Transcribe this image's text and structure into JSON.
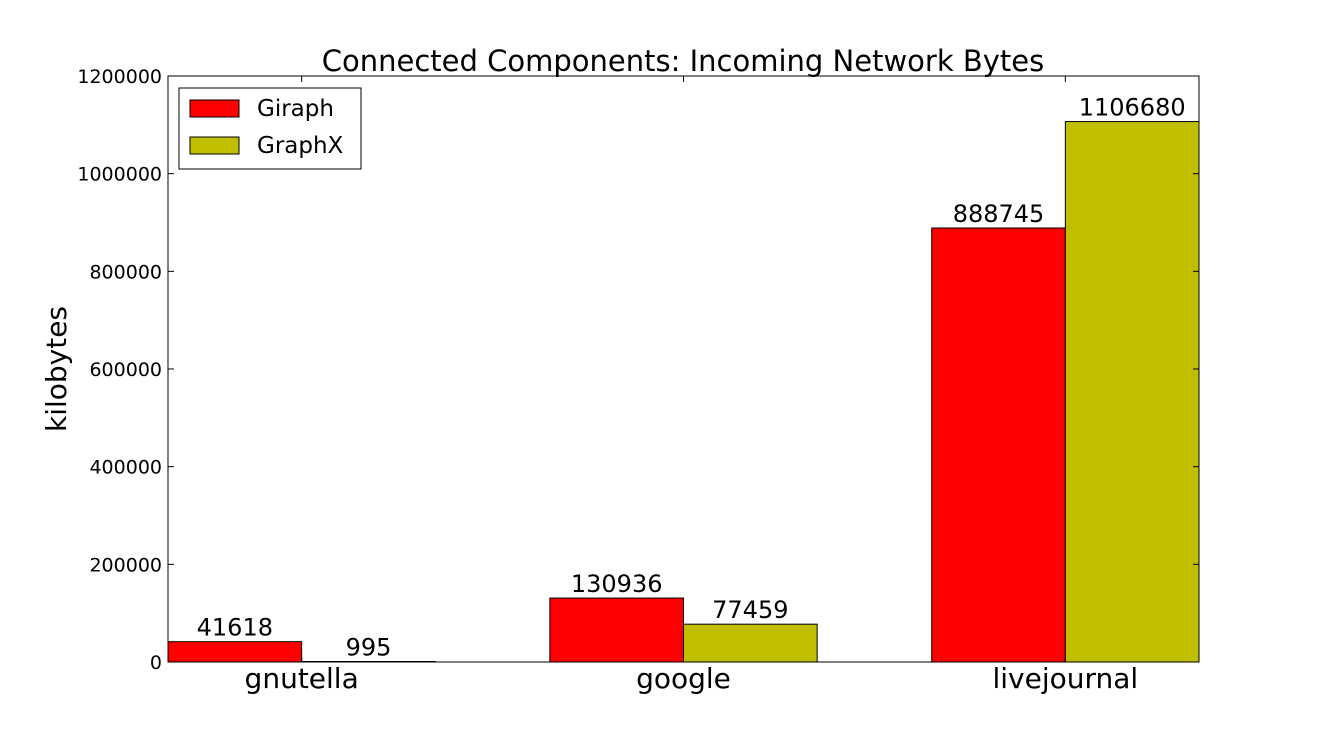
{
  "chart_data": {
    "type": "bar",
    "title": "Connected Components: Incoming Network Bytes",
    "xlabel": "",
    "ylabel": "kilobytes",
    "ylim": [
      0,
      1200000
    ],
    "yticks": [
      0,
      200000,
      400000,
      600000,
      800000,
      1000000,
      1200000
    ],
    "categories": [
      "gnutella",
      "google",
      "livejournal"
    ],
    "series": [
      {
        "name": "Giraph",
        "color": "#ff0000",
        "values": [
          41618,
          130936,
          888745
        ]
      },
      {
        "name": "GraphX",
        "color": "#bfbf00",
        "values": [
          995,
          77459,
          1106680
        ]
      }
    ],
    "legend": "top-left",
    "grid": false
  }
}
